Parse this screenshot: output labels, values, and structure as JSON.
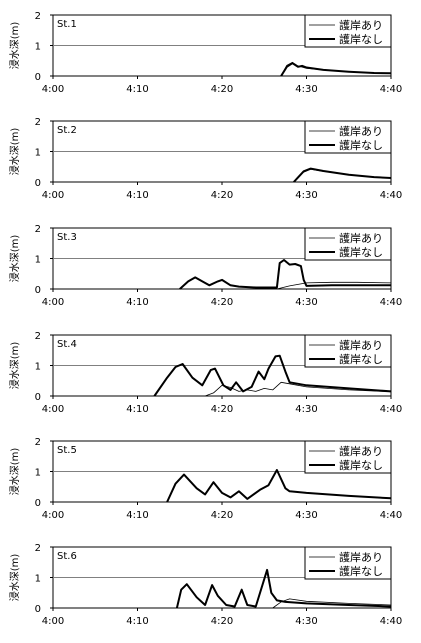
{
  "chart_data": [
    {
      "type": "line",
      "station_label": "St.1",
      "ylabel": "浸水深(m)",
      "ylim": [
        0,
        2
      ],
      "yticks": [
        "0",
        "1",
        "2"
      ],
      "xlim": [
        "4:00",
        "4:40"
      ],
      "xticks": [
        "4:00",
        "4:10",
        "4:20",
        "4:30",
        "4:40"
      ],
      "grid": "horizontal",
      "legend_position": "top-right",
      "series": [
        {
          "name": "護岸あり",
          "x": [
            "4:27:00",
            "4:27:40",
            "4:28:20",
            "4:29:00",
            "4:30:00",
            "4:32:00",
            "4:35:00",
            "4:38:00",
            "4:40:00"
          ],
          "y": [
            0.0,
            0.35,
            0.45,
            0.33,
            0.25,
            0.2,
            0.14,
            0.1,
            0.09
          ]
        },
        {
          "name": "護岸なし",
          "x": [
            "4:27:00",
            "4:27:40",
            "4:28:20",
            "4:29:00",
            "4:29:30",
            "4:30:00",
            "4:32:00",
            "4:35:00",
            "4:38:00",
            "4:40:00"
          ],
          "y": [
            0.0,
            0.3,
            0.42,
            0.3,
            0.33,
            0.28,
            0.2,
            0.14,
            0.1,
            0.09
          ]
        }
      ]
    },
    {
      "type": "line",
      "station_label": "St.2",
      "ylabel": "浸水深(m)",
      "ylim": [
        0,
        2
      ],
      "yticks": [
        "0",
        "1",
        "2"
      ],
      "xlim": [
        "4:00",
        "4:40"
      ],
      "xticks": [
        "4:00",
        "4:10",
        "4:20",
        "4:30",
        "4:40"
      ],
      "grid": "horizontal",
      "legend_position": "top-right",
      "series": [
        {
          "name": "護岸あり",
          "x": [
            "4:28:30",
            "4:29:30",
            "4:30:30",
            "4:32:00",
            "4:35:00",
            "4:38:00",
            "4:40:00"
          ],
          "y": [
            0.0,
            0.3,
            0.42,
            0.35,
            0.24,
            0.16,
            0.13
          ]
        },
        {
          "name": "護岸なし",
          "x": [
            "4:28:30",
            "4:29:00",
            "4:29:40",
            "4:30:30",
            "4:32:00",
            "4:35:00",
            "4:38:00",
            "4:40:00"
          ],
          "y": [
            0.0,
            0.15,
            0.35,
            0.44,
            0.36,
            0.24,
            0.16,
            0.13
          ]
        }
      ]
    },
    {
      "type": "line",
      "station_label": "St.3",
      "ylabel": "浸水深(m)",
      "ylim": [
        0,
        2
      ],
      "yticks": [
        "0",
        "1",
        "2"
      ],
      "xlim": [
        "4:00",
        "4:40"
      ],
      "xticks": [
        "4:00",
        "4:10",
        "4:20",
        "4:30",
        "4:40"
      ],
      "grid": "horizontal",
      "legend_position": "top-right",
      "series": [
        {
          "name": "護岸あり",
          "x": [
            "4:26:30",
            "4:28:00",
            "4:30:00",
            "4:33:00",
            "4:36:00",
            "4:40:00"
          ],
          "y": [
            0.0,
            0.1,
            0.2,
            0.22,
            0.22,
            0.2
          ]
        },
        {
          "name": "護岸なし",
          "x": [
            "4:15:00",
            "4:16:00",
            "4:16:50",
            "4:17:40",
            "4:18:30",
            "4:19:30",
            "4:20:00",
            "4:21:00",
            "4:22:00",
            "4:24:00",
            "4:26:30",
            "4:26:50",
            "4:27:20",
            "4:28:00",
            "4:28:40",
            "4:29:20",
            "4:29:40",
            "4:30:00",
            "4:33:00",
            "4:36:00",
            "4:40:00"
          ],
          "y": [
            0.0,
            0.25,
            0.38,
            0.25,
            0.12,
            0.25,
            0.3,
            0.12,
            0.08,
            0.05,
            0.05,
            0.85,
            0.95,
            0.8,
            0.82,
            0.75,
            0.3,
            0.1,
            0.12,
            0.12,
            0.12
          ]
        }
      ]
    },
    {
      "type": "line",
      "station_label": "St.4",
      "ylabel": "浸水深(m)",
      "ylim": [
        0,
        2
      ],
      "yticks": [
        "0",
        "1",
        "2"
      ],
      "xlim": [
        "4:00",
        "4:40"
      ],
      "xticks": [
        "4:00",
        "4:10",
        "4:20",
        "4:30",
        "4:40"
      ],
      "grid": "horizontal",
      "legend_position": "top-right",
      "series": [
        {
          "name": "護岸あり",
          "x": [
            "4:18:00",
            "4:19:00",
            "4:20:00",
            "4:21:00",
            "4:22:00",
            "4:23:00",
            "4:24:00",
            "4:25:00",
            "4:26:00",
            "4:27:00",
            "4:28:00",
            "4:30:00",
            "4:35:00",
            "4:40:00"
          ],
          "y": [
            0.0,
            0.1,
            0.35,
            0.28,
            0.15,
            0.2,
            0.15,
            0.25,
            0.2,
            0.45,
            0.4,
            0.3,
            0.2,
            0.14
          ]
        },
        {
          "name": "護岸なし",
          "x": [
            "4:12:00",
            "4:13:30",
            "4:14:30",
            "4:15:20",
            "4:16:30",
            "4:17:40",
            "4:18:40",
            "4:19:10",
            "4:20:10",
            "4:21:00",
            "4:21:40",
            "4:22:30",
            "4:23:30",
            "4:24:20",
            "4:25:00",
            "4:25:30",
            "4:26:20",
            "4:26:50",
            "4:27:30",
            "4:28:00",
            "4:30:00",
            "4:35:00",
            "4:40:00"
          ],
          "y": [
            0.0,
            0.6,
            0.95,
            1.05,
            0.6,
            0.35,
            0.85,
            0.9,
            0.35,
            0.2,
            0.45,
            0.15,
            0.3,
            0.8,
            0.55,
            0.9,
            1.3,
            1.32,
            0.8,
            0.45,
            0.35,
            0.25,
            0.15
          ]
        }
      ]
    },
    {
      "type": "line",
      "station_label": "St.5",
      "ylabel": "浸水深(m)",
      "ylim": [
        0,
        2
      ],
      "yticks": [
        "0",
        "1",
        "2"
      ],
      "xlim": [
        "4:00",
        "4:40"
      ],
      "xticks": [
        "4:00",
        "4:10",
        "4:20",
        "4:30",
        "4:40"
      ],
      "grid": "horizontal",
      "legend_position": "top-right",
      "series": [
        {
          "name": "護岸あり",
          "x": [
            "4:13:30",
            "4:14:30",
            "4:15:30",
            "4:17:00",
            "4:18:00",
            "4:19:00",
            "4:20:00",
            "4:21:00",
            "4:22:00",
            "4:23:00",
            "4:24:30",
            "4:25:30",
            "4:26:30",
            "4:27:30",
            "4:28:00",
            "4:30:00",
            "4:35:00",
            "4:40:00"
          ],
          "y": [
            0.0,
            0.6,
            0.9,
            0.45,
            0.25,
            0.65,
            0.3,
            0.15,
            0.35,
            0.1,
            0.4,
            0.55,
            1.05,
            0.45,
            0.35,
            0.3,
            0.2,
            0.12
          ]
        },
        {
          "name": "護岸なし",
          "x": [
            "4:13:30",
            "4:14:30",
            "4:15:30",
            "4:17:00",
            "4:18:00",
            "4:19:00",
            "4:20:00",
            "4:21:00",
            "4:22:00",
            "4:23:00",
            "4:24:30",
            "4:25:30",
            "4:26:30",
            "4:27:30",
            "4:28:00",
            "4:30:00",
            "4:35:00",
            "4:40:00"
          ],
          "y": [
            0.0,
            0.6,
            0.9,
            0.45,
            0.25,
            0.65,
            0.3,
            0.15,
            0.35,
            0.1,
            0.4,
            0.55,
            1.05,
            0.45,
            0.35,
            0.3,
            0.2,
            0.12
          ]
        }
      ]
    },
    {
      "type": "line",
      "station_label": "St.6",
      "ylabel": "浸水深(m)",
      "ylim": [
        0,
        2
      ],
      "yticks": [
        "0",
        "1",
        "2"
      ],
      "xlim": [
        "4:00",
        "4:40"
      ],
      "xticks": [
        "4:00",
        "4:10",
        "4:20",
        "4:30",
        "4:40"
      ],
      "grid": "horizontal",
      "legend_position": "top-right",
      "series": [
        {
          "name": "護岸あり",
          "x": [
            "4:26:00",
            "4:27:00",
            "4:28:00",
            "4:30:00",
            "4:35:00",
            "4:40:00"
          ],
          "y": [
            0.0,
            0.2,
            0.3,
            0.22,
            0.15,
            0.1
          ]
        },
        {
          "name": "護岸なし",
          "x": [
            "4:14:40",
            "4:15:10",
            "4:15:50",
            "4:17:00",
            "4:18:00",
            "4:18:50",
            "4:19:30",
            "4:20:30",
            "4:21:30",
            "4:22:20",
            "4:23:00",
            "4:24:00",
            "4:25:20",
            "4:25:50",
            "4:26:30",
            "4:27:30",
            "4:30:00",
            "4:35:00",
            "4:40:00"
          ],
          "y": [
            0.0,
            0.6,
            0.78,
            0.35,
            0.1,
            0.75,
            0.4,
            0.1,
            0.05,
            0.6,
            0.1,
            0.05,
            1.25,
            0.5,
            0.25,
            0.2,
            0.15,
            0.1,
            0.05
          ]
        }
      ]
    }
  ]
}
